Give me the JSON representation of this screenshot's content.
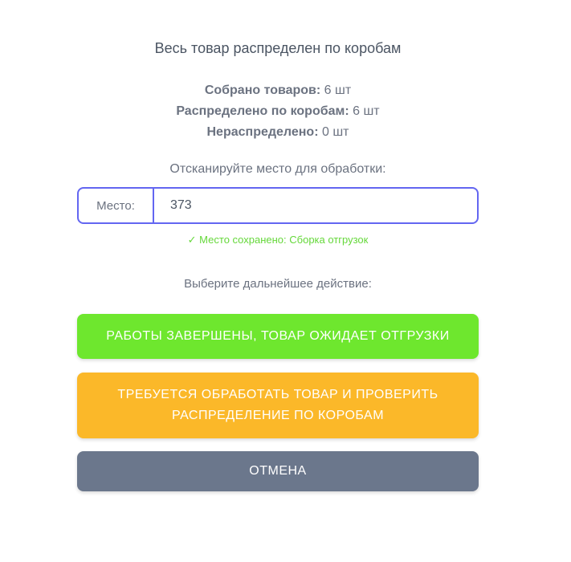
{
  "title": "Весь товар распределен по коробам",
  "stats": [
    {
      "label": "Собрано товаров:",
      "value": "6 шт"
    },
    {
      "label": "Распределено по коробам:",
      "value": "6 шт"
    },
    {
      "label": "Нераспределено:",
      "value": "0 шт"
    }
  ],
  "scan_prompt": "Отсканируйте место для обработки:",
  "place_field": {
    "label": "Место:",
    "value": "373"
  },
  "saved_message": "✓ Место сохранено: Сборка отгрузок",
  "action_prompt": "Выберите дальнейшее действие:",
  "buttons": {
    "done": "РАБОТЫ ЗАВЕРШЕНЫ, ТОВАР ОЖИДАЕТ ОТГРУЗКИ",
    "recheck": "ТРЕБУЕТСЯ ОБРАБОТАТЬ ТОВАР И ПРОВЕРИТЬ РАСПРЕДЕЛЕНИЕ ПО КОРОБАМ",
    "cancel": "ОТМЕНА"
  },
  "colors": {
    "accent": "#6366f1",
    "success": "#6ee72e",
    "warning": "#fbb829",
    "neutral": "#6b778c"
  }
}
